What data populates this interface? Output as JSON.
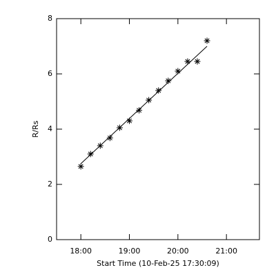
{
  "chart_data": {
    "type": "scatter",
    "x_label": "Start Time (10-Feb-25 17:30:09)",
    "y_label": "R/Rs",
    "x": [
      18.0,
      18.2,
      18.4,
      18.6,
      18.8,
      19.0,
      19.2,
      19.4,
      19.6,
      19.8,
      20.0,
      20.2,
      20.4,
      20.6
    ],
    "values": [
      2.65,
      3.1,
      3.4,
      3.68,
      4.05,
      4.3,
      4.68,
      5.05,
      5.4,
      5.75,
      6.1,
      6.45,
      6.45,
      7.2
    ],
    "fit": {
      "x": [
        18.0,
        20.6
      ],
      "values": [
        2.75,
        7.0
      ]
    },
    "color": "#000000",
    "xlim": [
      17.5,
      21.68
    ],
    "xticks": [
      {
        "value": 18,
        "label": "18:00"
      },
      {
        "value": 19,
        "label": "19:00"
      },
      {
        "value": 20,
        "label": "20:00"
      },
      {
        "value": 21,
        "label": "21:00"
      }
    ],
    "ylim": [
      0,
      8
    ],
    "yticks": [
      0,
      2,
      4,
      6,
      8
    ]
  }
}
